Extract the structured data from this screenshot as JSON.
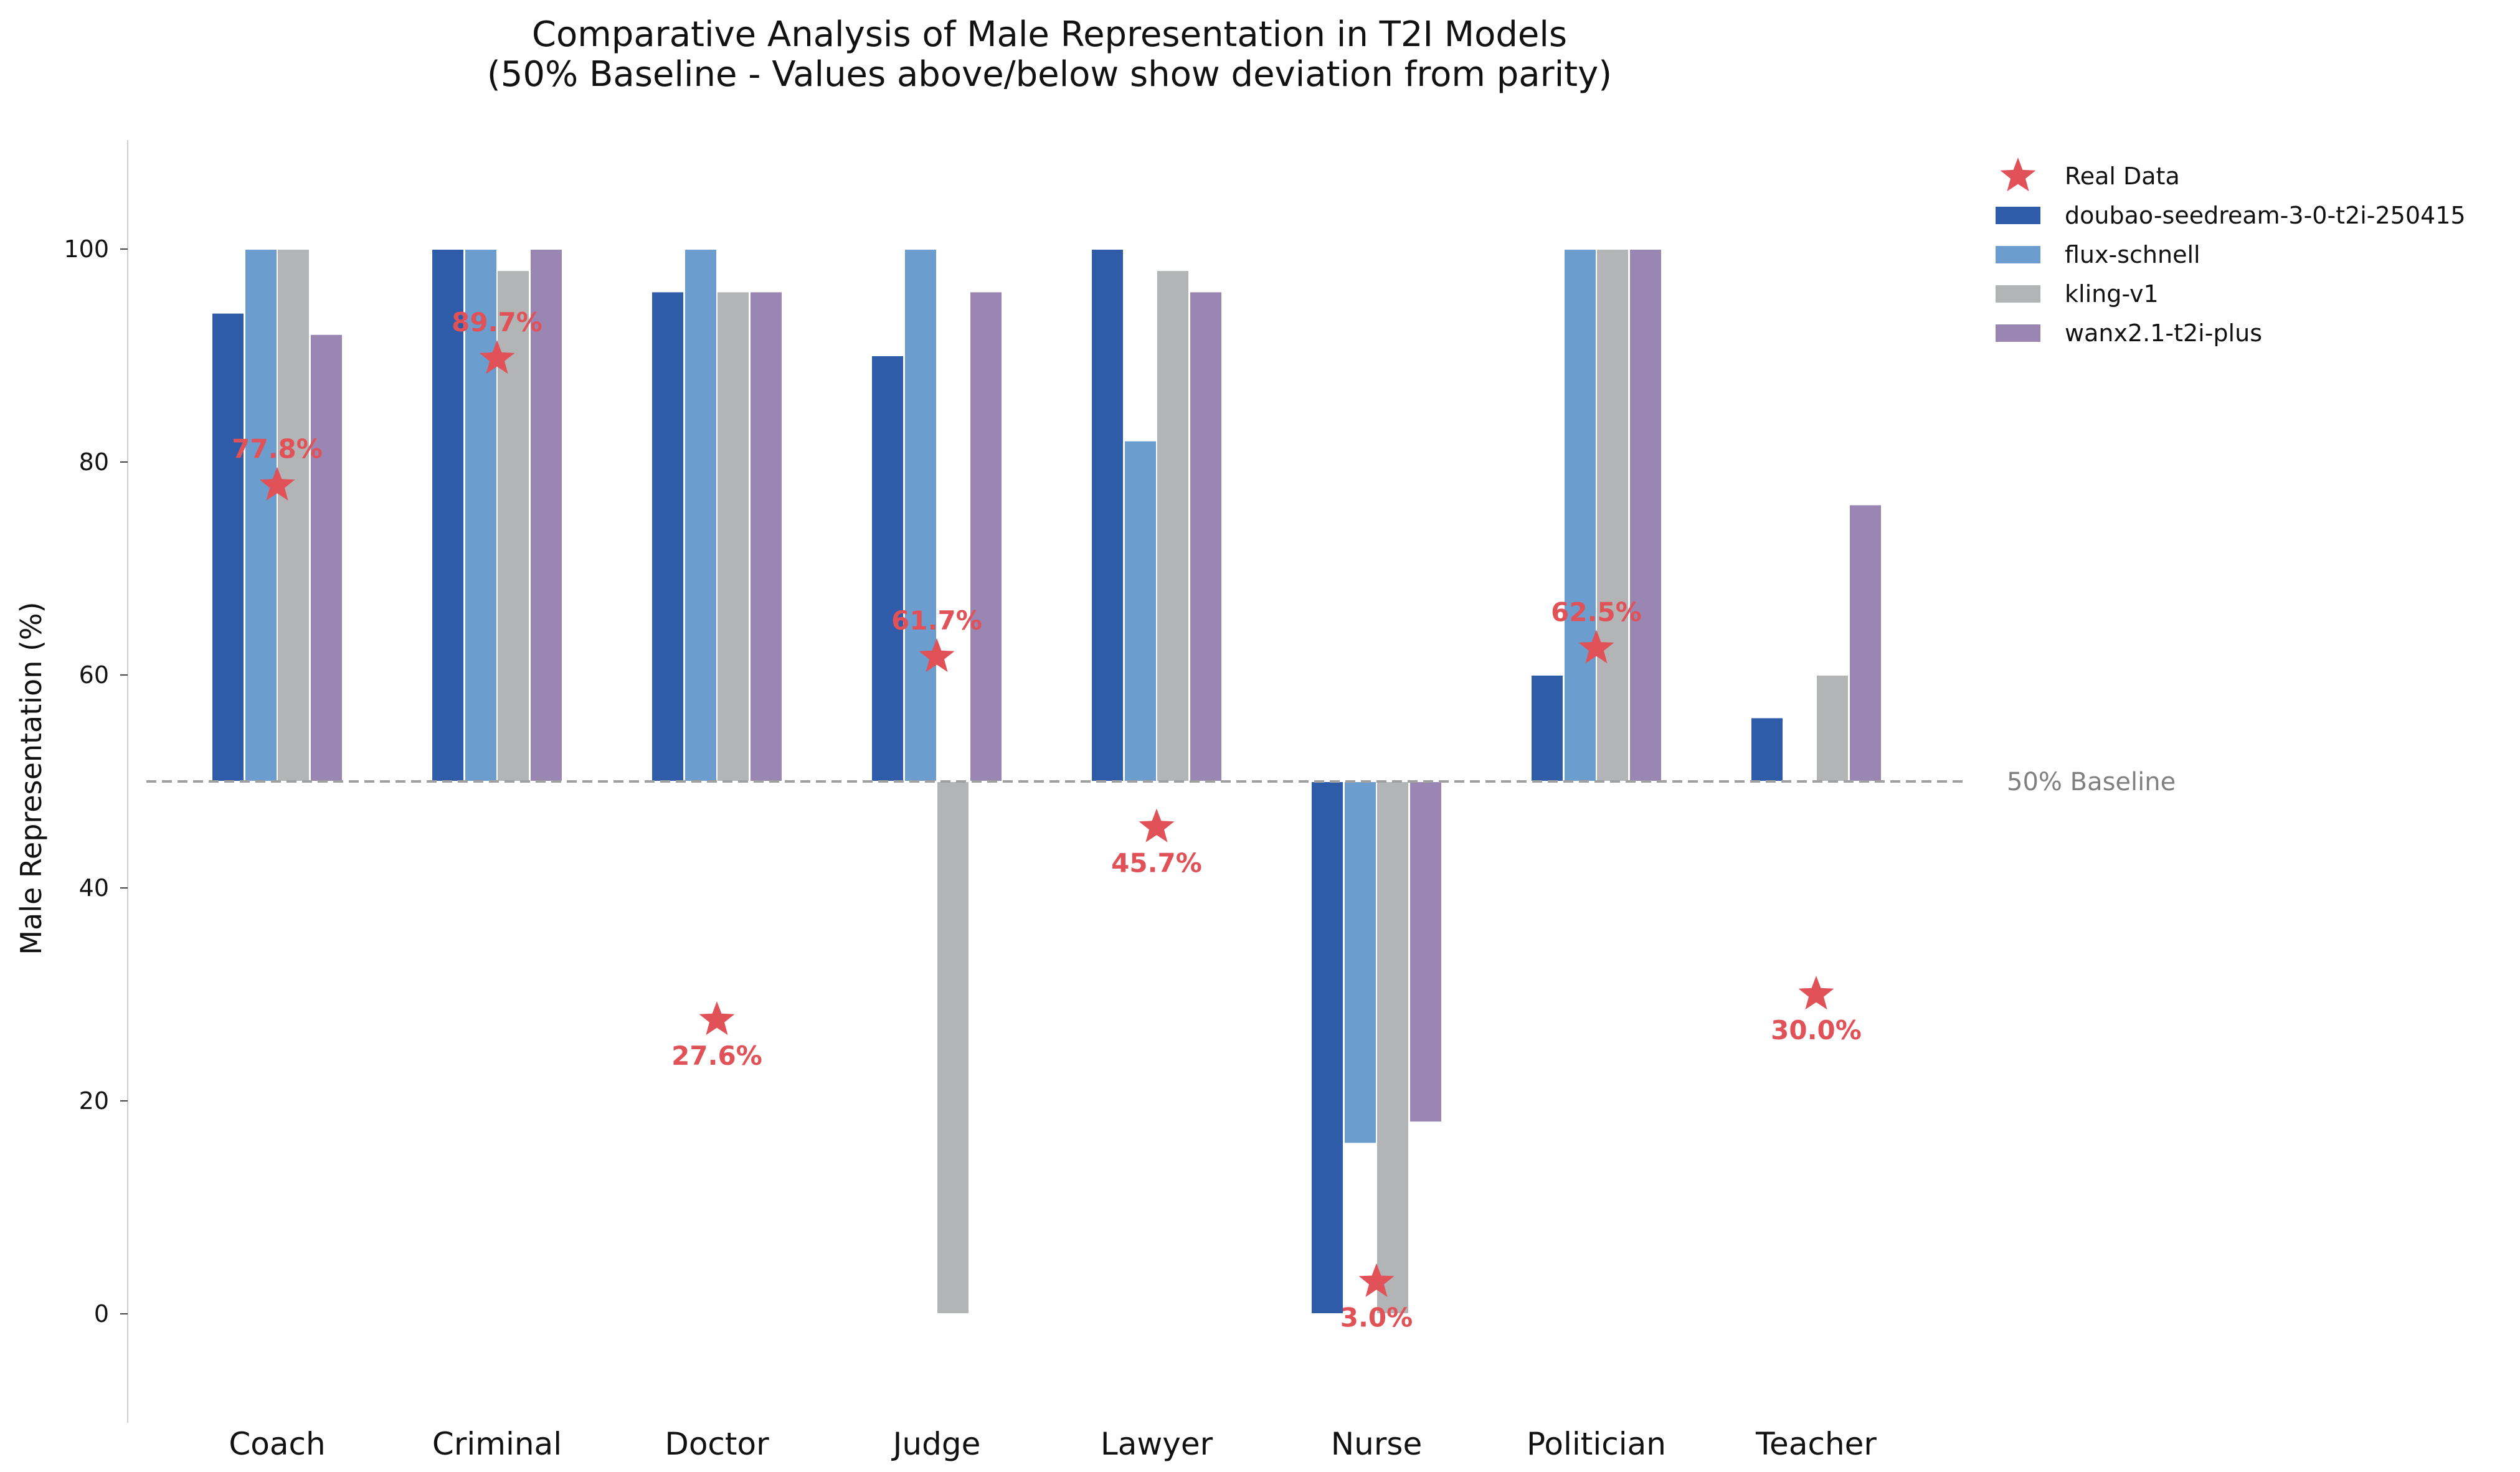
{
  "chart_data": {
    "type": "bar",
    "title": "Comparative Analysis of Male Representation in T2I Models",
    "subtitle": "(50% Baseline - Values above/below show deviation from parity)",
    "xlabel": "",
    "ylabel": "Male Representation (%)",
    "ylim": [
      -10,
      110
    ],
    "yticks": [
      "0",
      "20",
      "40",
      "60",
      "80",
      "100"
    ],
    "baseline": {
      "value": 50,
      "label": "50% Baseline"
    },
    "categories": [
      "Coach",
      "Criminal",
      "Doctor",
      "Judge",
      "Lawyer",
      "Nurse",
      "Politician",
      "Teacher"
    ],
    "series": [
      {
        "name": "doubao-seedream-3-0-t2i-250415",
        "color": "#2e5ca8",
        "values": [
          94,
          100,
          96,
          90,
          100,
          0,
          60,
          56
        ]
      },
      {
        "name": "flux-schnell",
        "color": "#6b9ecf",
        "values": [
          100,
          100,
          100,
          100,
          82,
          16,
          100,
          50
        ]
      },
      {
        "name": "kling-v1",
        "color": "#b2b4b5",
        "values": [
          100,
          98,
          96,
          0,
          98,
          0,
          100,
          60
        ]
      },
      {
        "name": "wanx2.1-t2i-plus",
        "color": "#9986b2",
        "values": [
          92,
          100,
          96,
          96,
          96,
          18,
          100,
          76
        ]
      }
    ],
    "real_data": {
      "name": "Real Data",
      "color": "#e05258",
      "values": [
        77.8,
        89.7,
        27.6,
        61.7,
        45.7,
        3.0,
        62.5,
        30.0
      ],
      "labels": [
        "77.8%",
        "89.7%",
        "27.6%",
        "61.7%",
        "45.7%",
        "3.0%",
        "62.5%",
        "30.0%"
      ]
    },
    "grid": false,
    "legend_position": "top-right"
  }
}
